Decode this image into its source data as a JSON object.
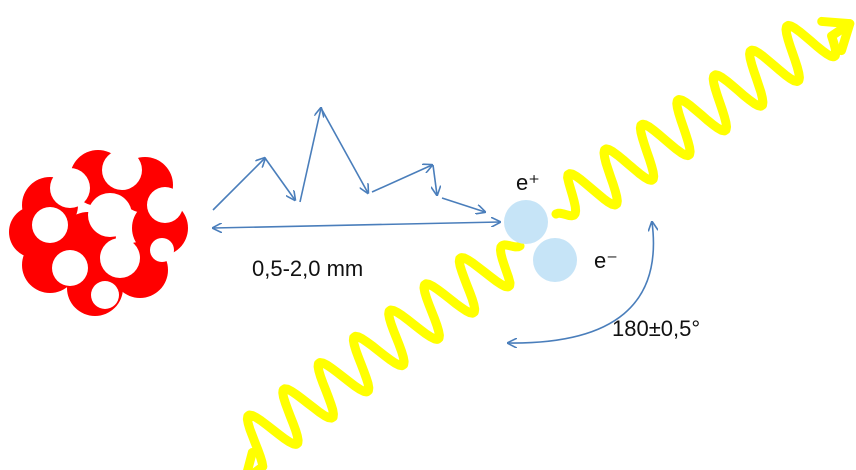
{
  "labels": {
    "positron": "e⁺",
    "electron": "e⁻",
    "distance": "0,5-2,0 mm",
    "angle": "180±0,5°"
  }
}
